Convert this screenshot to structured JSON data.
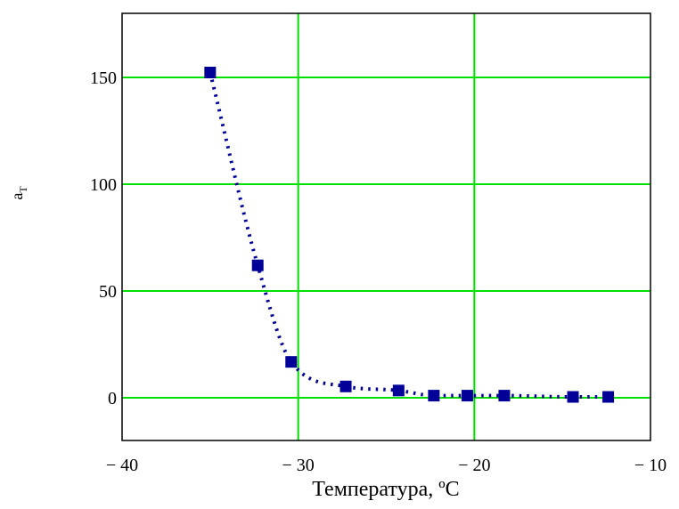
{
  "chart_data": {
    "type": "scatter",
    "title": "",
    "xlabel": "Температура, ºC",
    "ylabel": "a",
    "ylabel_subscript": "T",
    "xlim": [
      -40,
      -10
    ],
    "ylim": [
      -20,
      180
    ],
    "x_ticks": [
      -40,
      -30,
      -20,
      -10
    ],
    "x_tick_labels": [
      "− 40",
      "− 30",
      "− 20",
      "− 10"
    ],
    "y_ticks": [
      0,
      50,
      100,
      150
    ],
    "y_tick_labels": [
      "0",
      "50",
      "100",
      "150"
    ],
    "grid": true,
    "grid_color": "#00e000",
    "marker_color": "#000099",
    "line_color": "#000099",
    "line_style": "dotted",
    "marker": "square",
    "series": [
      {
        "x": [
          -35.0,
          -32.3,
          -30.4,
          -27.3,
          -24.3,
          -22.3,
          -20.4,
          -18.3,
          -14.4,
          -12.4
        ],
        "y": [
          152.3,
          62.0,
          16.8,
          5.3,
          3.4,
          1.0,
          1.0,
          1.0,
          0.4,
          0.4
        ]
      }
    ]
  }
}
